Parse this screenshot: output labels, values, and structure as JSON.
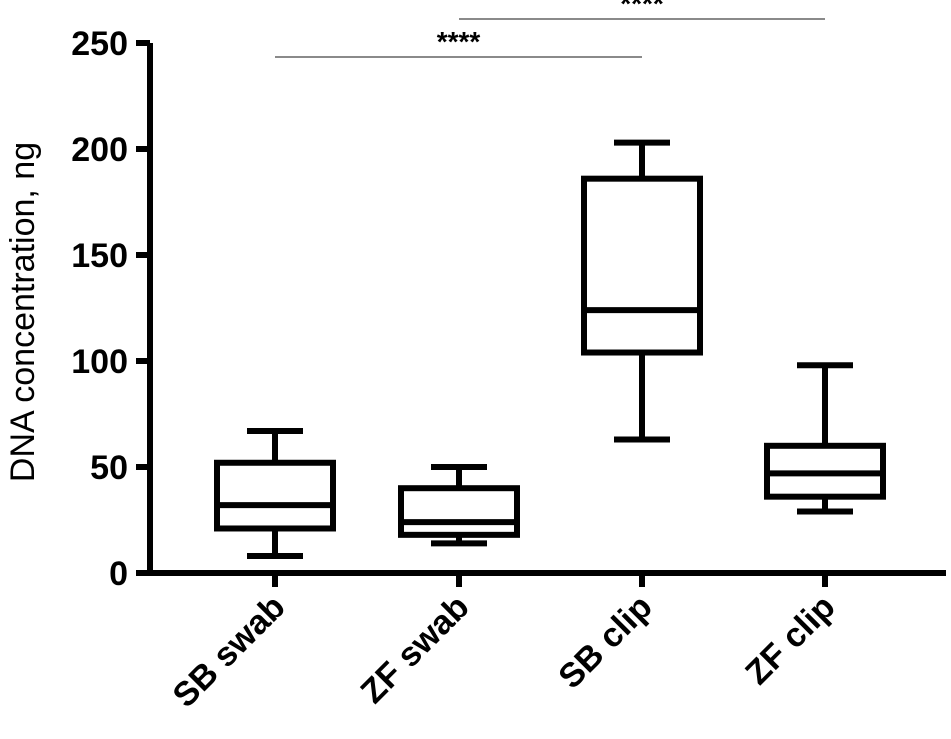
{
  "chart_data": {
    "type": "box",
    "title": "",
    "xlabel": "",
    "ylabel": "DNA concentration, ng",
    "ylim": [
      0,
      250
    ],
    "yticks": [
      0,
      50,
      100,
      150,
      200,
      250
    ],
    "categories": [
      "SB swab",
      "ZF swab",
      "SB clip",
      "ZF clip"
    ],
    "boxes": [
      {
        "min": 8,
        "q1": 21,
        "median": 32,
        "q3": 52,
        "max": 67
      },
      {
        "min": 14,
        "q1": 18,
        "median": 24,
        "q3": 40,
        "max": 50
      },
      {
        "min": 63,
        "q1": 104,
        "median": 124,
        "q3": 186,
        "max": 203
      },
      {
        "min": 29,
        "q1": 36,
        "median": 47,
        "q3": 60,
        "max": 98
      }
    ],
    "significance": [
      {
        "from": 0,
        "to": 2,
        "label": "****"
      },
      {
        "from": 1,
        "to": 3,
        "label": "****"
      }
    ],
    "grid": false,
    "legend": "none"
  }
}
